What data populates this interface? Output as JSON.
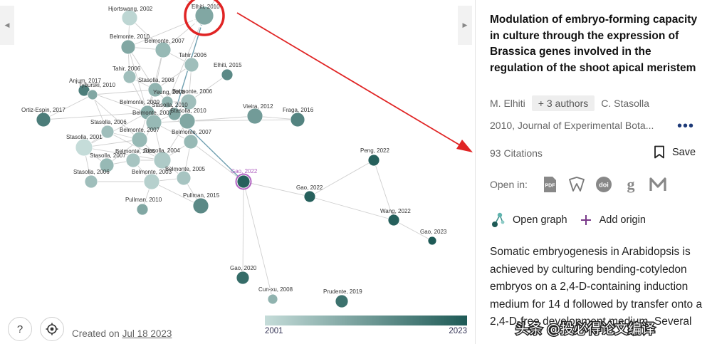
{
  "graph": {
    "nodes": [
      {
        "label": "Hjortswang, 2002",
        "year": 2002
      },
      {
        "label": "Elhiti, 2010",
        "year": 2010,
        "selected": true
      },
      {
        "label": "Belmonte, 2010",
        "year": 2010
      },
      {
        "label": "Belmonte, 2007",
        "year": 2007
      },
      {
        "label": "Tahir, 2006",
        "year": 2006
      },
      {
        "label": "Elhiti, 2015",
        "year": 2015
      },
      {
        "label": "Tahir, 2006",
        "year": 2006
      },
      {
        "label": "Stasolla, 2008",
        "year": 2008
      },
      {
        "label": "Anjum, 2017",
        "year": 2017
      },
      {
        "label": "Tyburski, 2010",
        "year": 2010
      },
      {
        "label": "Yeung, 2008",
        "year": 2008
      },
      {
        "label": "Belmonte, 2006",
        "year": 2006
      },
      {
        "label": "Belmonte, 2009",
        "year": 2009
      },
      {
        "label": "Stasolla, 2010",
        "year": 2010
      },
      {
        "label": "Ortiz-Espin, 2017",
        "year": 2017
      },
      {
        "label": "Belmonte, 2007",
        "year": 2007
      },
      {
        "label": "Stasolla, 2010",
        "year": 2010
      },
      {
        "label": "Vieira, 2012",
        "year": 2012
      },
      {
        "label": "Fraga, 2016",
        "year": 2016
      },
      {
        "label": "Stasolla, 2006",
        "year": 2006
      },
      {
        "label": "Belmonte, 2007",
        "year": 2007
      },
      {
        "label": "Belmonte, 2007",
        "year": 2007
      },
      {
        "label": "Stasolla, 2001",
        "year": 2001
      },
      {
        "label": "Stasolla, 2007",
        "year": 2007
      },
      {
        "label": "Belmonte, 2005",
        "year": 2005
      },
      {
        "label": "Stasolla, 2004",
        "year": 2004
      },
      {
        "label": "Stasolla, 2006",
        "year": 2006
      },
      {
        "label": "Belmonte, 2003",
        "year": 2003
      },
      {
        "label": "Belmonte, 2005",
        "year": 2005
      },
      {
        "label": "Gao, 2022",
        "year": 2022,
        "highlight": true
      },
      {
        "label": "Peng, 2022",
        "year": 2022
      },
      {
        "label": "Gao, 2022",
        "year": 2022
      },
      {
        "label": "Pullman, 2010",
        "year": 2010
      },
      {
        "label": "Pullman, 2015",
        "year": 2015
      },
      {
        "label": "Wang, 2022",
        "year": 2022
      },
      {
        "label": "Gao, 2023",
        "year": 2023
      },
      {
        "label": "Gao, 2020",
        "year": 2020
      },
      {
        "label": "Cun-xu, 2008",
        "year": 2008
      },
      {
        "label": "Prudente, 2019",
        "year": 2019
      }
    ],
    "created_prefix": "Created on",
    "created_date": "Jul 18 2023",
    "legend_min": "2001",
    "legend_max": "2023",
    "color_old": "#c5dcd9",
    "color_new": "#1e5a56",
    "highlight_color": "#b060c0",
    "selection_ring_color": "#e02424",
    "arrow_color": "#e02424"
  },
  "detail": {
    "title": "Modulation of embryo-forming capacity in culture through the expression of Brassica genes involved in the regulation of the shoot apical meristem",
    "first_author": "M. Elhiti",
    "more_authors": "+ 3 authors",
    "last_author": "C. Stasolla",
    "venue": "2010, Journal of Experimental Bota...",
    "citations": "93 Citations",
    "save_label": "Save",
    "open_in_label": "Open in:",
    "open_graph_label": "Open graph",
    "add_origin_label": "Add origin",
    "abstract": "Somatic embryogenesis in Arabidopsis is achieved by culturing bending-cotyledon embryos on a 2,4-D-containing induction medium for 14 d followed by transfer onto a 2,4-D-free development medium. Several",
    "icons": {
      "more": "more-dots-icon",
      "save": "bookmark-icon",
      "pdf": "pdf-icon",
      "source2": "publisher-icon",
      "doi": "doi-icon",
      "scholar": "google-scholar-icon",
      "mendeley": "mendeley-icon",
      "graph": "graph-icon",
      "add": "plus-icon"
    }
  },
  "watermark": "头条 @投必得论文编译"
}
